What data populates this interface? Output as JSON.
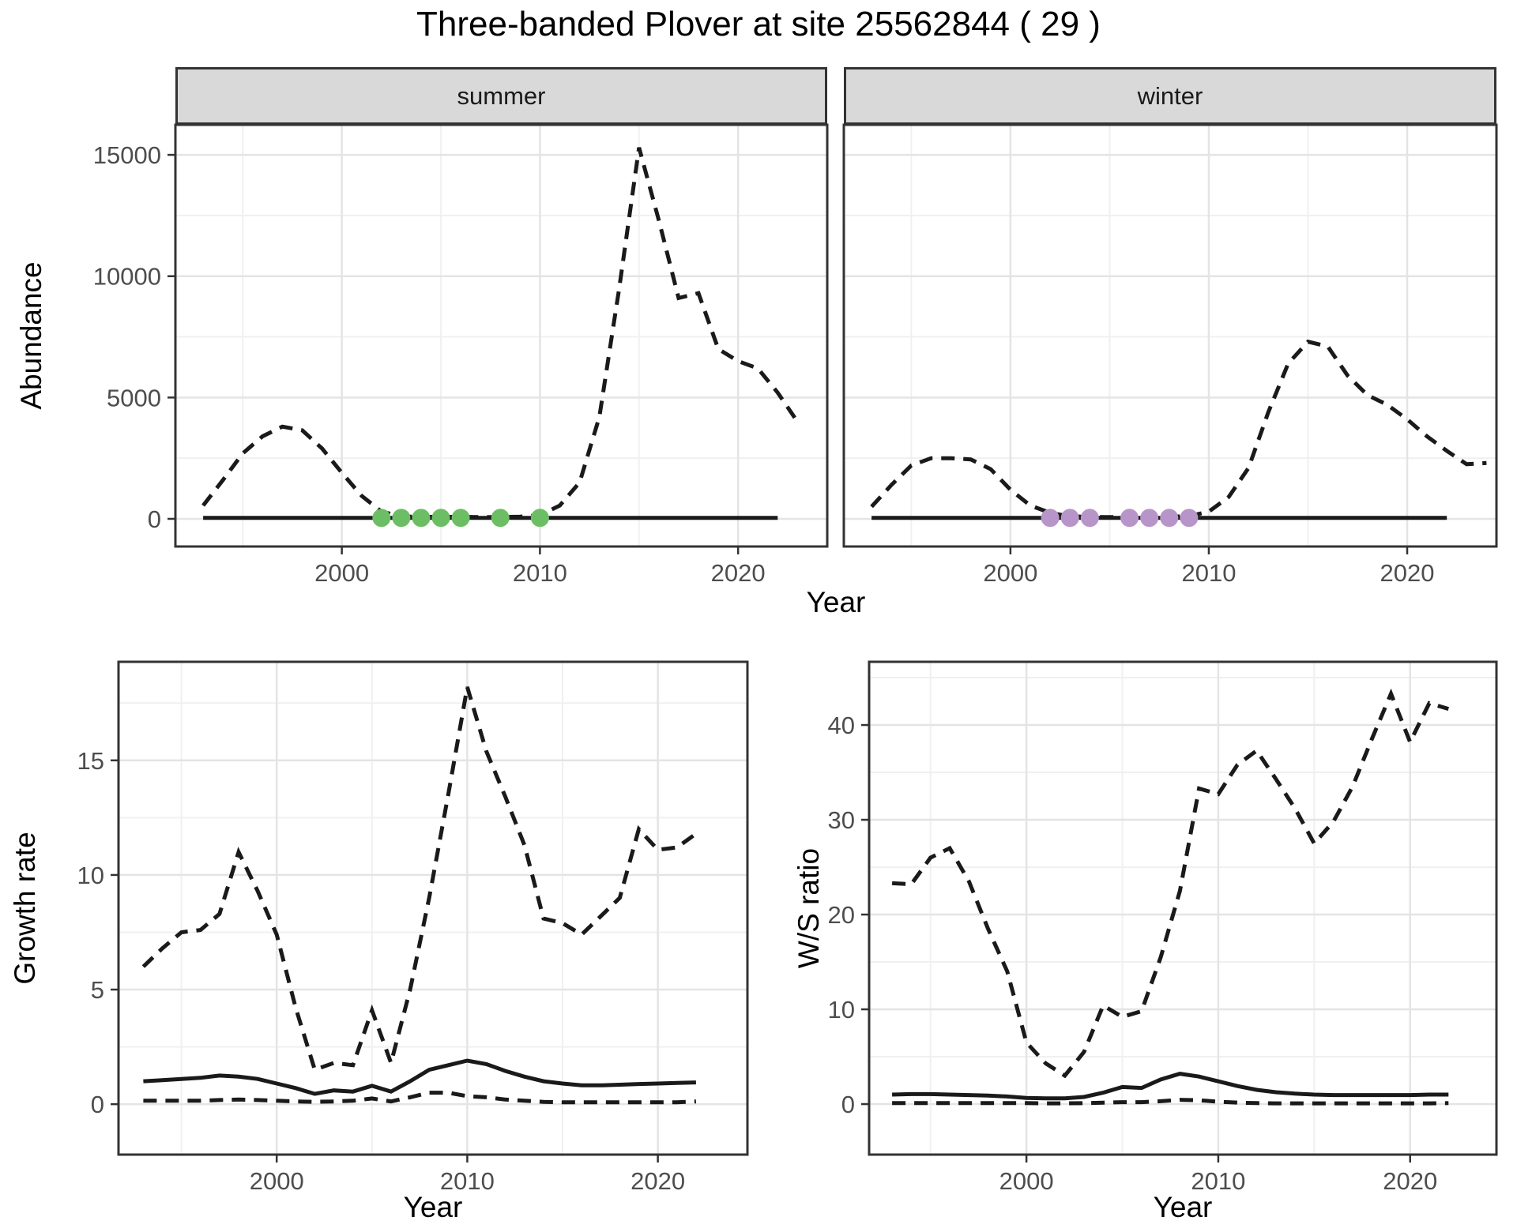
{
  "title": "Three-banded Plover at site 25562844 ( 29 )",
  "axis_titles": {
    "abundance": "Abundance",
    "year": "Year",
    "growth_rate": "Growth rate",
    "ws_ratio": "W/S ratio"
  },
  "colors": {
    "line": "#1a1a1a",
    "points_summer": "#6cbe64",
    "points_winter": "#b795c8",
    "grid_major": "#e4e4e4",
    "grid_minor": "#f0f0f0",
    "strip_bg": "#d9d9d9",
    "panel_border": "#333333",
    "tick_text": "#4d4d4d"
  },
  "chart_data": [
    {
      "id": "summer",
      "type": "line",
      "facet": "summer",
      "xlabel": "Year",
      "ylabel": "Abundance",
      "xlim": [
        1991.6,
        2024.5
      ],
      "ylim": [
        -1140,
        16240
      ],
      "xticks": [
        2000,
        2010,
        2020
      ],
      "xminor": [
        1995,
        2005,
        2015
      ],
      "yticks": [
        0,
        5000,
        10000,
        15000
      ],
      "yminor": [
        2500,
        7500,
        12500
      ],
      "grid": true,
      "show_y_ticks": true,
      "series": [
        {
          "name": "observed-solid",
          "style": "solid",
          "start_year": 1993,
          "values": [
            40,
            40,
            40,
            40,
            40,
            40,
            40,
            40,
            40,
            40,
            40,
            40,
            40,
            40,
            40,
            40,
            40,
            40,
            40,
            40,
            40,
            40,
            40,
            40,
            40,
            40,
            40,
            40,
            40,
            40
          ]
        },
        {
          "name": "model-dashed",
          "style": "dashed",
          "start_year": 1993,
          "values": [
            550,
            1600,
            2700,
            3400,
            3800,
            3650,
            2900,
            1900,
            950,
            300,
            100,
            80,
            80,
            80,
            70,
            70,
            90,
            150,
            550,
            1500,
            4200,
            9500,
            15300,
            12300,
            9100,
            9300,
            7000,
            6500,
            6200,
            5200,
            4000
          ]
        },
        {
          "name": "flagged-years-points",
          "style": "points",
          "color": "#6cbe64",
          "years": [
            2002,
            2003,
            2004,
            2005,
            2006,
            2008,
            2010
          ],
          "values": [
            40,
            40,
            40,
            40,
            40,
            40,
            40
          ]
        }
      ]
    },
    {
      "id": "winter",
      "type": "line",
      "facet": "winter",
      "xlabel": "Year",
      "xlim": [
        1991.6,
        2024.5
      ],
      "ylim": [
        -1140,
        16240
      ],
      "xticks": [
        2000,
        2010,
        2020
      ],
      "xminor": [
        1995,
        2005,
        2015
      ],
      "yticks": [
        0,
        5000,
        10000,
        15000
      ],
      "yminor": [
        2500,
        7500,
        12500
      ],
      "grid": true,
      "show_y_ticks": false,
      "series": [
        {
          "name": "observed-solid",
          "style": "solid",
          "start_year": 1993,
          "values": [
            40,
            40,
            40,
            40,
            40,
            40,
            40,
            40,
            40,
            40,
            40,
            40,
            40,
            40,
            40,
            40,
            40,
            40,
            40,
            40,
            40,
            40,
            40,
            40,
            40,
            40,
            40,
            40,
            40,
            40
          ]
        },
        {
          "name": "model-dashed",
          "style": "dashed",
          "start_year": 1993,
          "values": [
            500,
            1400,
            2200,
            2500,
            2500,
            2450,
            2050,
            1200,
            550,
            250,
            100,
            80,
            70,
            80,
            80,
            90,
            110,
            300,
            900,
            2100,
            4400,
            6400,
            7300,
            7100,
            5900,
            5100,
            4700,
            4100,
            3400,
            2800,
            2250,
            2300
          ]
        },
        {
          "name": "flagged-years-points",
          "style": "points",
          "color": "#b795c8",
          "years": [
            2002,
            2003,
            2004,
            2006,
            2007,
            2008,
            2009
          ],
          "values": [
            40,
            40,
            40,
            40,
            40,
            40,
            40
          ]
        }
      ]
    },
    {
      "id": "growth",
      "type": "line",
      "xlabel": "Year",
      "ylabel": "Growth rate",
      "xlim": [
        1991.7,
        2024.7
      ],
      "ylim": [
        -2.2,
        19.3
      ],
      "xticks": [
        2000,
        2010,
        2020
      ],
      "xminor": [
        1995,
        2005,
        2015
      ],
      "yticks": [
        0,
        5,
        10,
        15
      ],
      "yminor": [
        2.5,
        7.5,
        12.5,
        17.5
      ],
      "grid": true,
      "show_y_ticks": true,
      "series": [
        {
          "name": "upper-dashed",
          "style": "dashed",
          "start_year": 1993,
          "values": [
            6.0,
            6.8,
            7.5,
            7.6,
            8.3,
            11.0,
            9.3,
            7.4,
            4.2,
            1.5,
            1.8,
            1.7,
            4.1,
            1.8,
            5.0,
            9.0,
            13.5,
            18.2,
            15.4,
            13.4,
            11.3,
            8.1,
            7.9,
            7.4,
            8.2,
            9.0,
            12.0,
            11.1,
            11.2,
            11.8
          ]
        },
        {
          "name": "median-solid",
          "style": "solid",
          "start_year": 1993,
          "values": [
            1.0,
            1.05,
            1.1,
            1.15,
            1.25,
            1.2,
            1.1,
            0.9,
            0.7,
            0.45,
            0.6,
            0.55,
            0.8,
            0.55,
            1.0,
            1.5,
            1.7,
            1.9,
            1.75,
            1.45,
            1.2,
            1.0,
            0.9,
            0.82,
            0.82,
            0.85,
            0.88,
            0.9,
            0.93,
            0.95
          ]
        },
        {
          "name": "lower-dashed",
          "style": "dashed",
          "start_year": 1993,
          "values": [
            0.15,
            0.15,
            0.15,
            0.15,
            0.18,
            0.2,
            0.18,
            0.15,
            0.12,
            0.1,
            0.12,
            0.15,
            0.25,
            0.12,
            0.3,
            0.5,
            0.5,
            0.35,
            0.3,
            0.2,
            0.15,
            0.1,
            0.08,
            0.08,
            0.08,
            0.08,
            0.08,
            0.08,
            0.08,
            0.12
          ]
        }
      ]
    },
    {
      "id": "ws",
      "type": "line",
      "xlabel": "Year",
      "ylabel": "W/S ratio",
      "xlim": [
        1991.8,
        2024.5
      ],
      "ylim": [
        -5.33,
        46.67
      ],
      "xticks": [
        2000,
        2010,
        2020
      ],
      "xminor": [
        1995,
        2005,
        2015
      ],
      "yticks": [
        0,
        10,
        20,
        30,
        40
      ],
      "yminor": [
        5,
        15,
        25,
        35,
        45
      ],
      "grid": true,
      "show_y_ticks": true,
      "series": [
        {
          "name": "upper-dashed",
          "style": "dashed",
          "start_year": 1993,
          "values": [
            23.3,
            23.2,
            26.0,
            27.0,
            23.5,
            18.5,
            14.0,
            6.5,
            4.3,
            3.0,
            5.5,
            10.4,
            9.2,
            9.8,
            15.5,
            22.5,
            33.3,
            32.7,
            35.8,
            37.3,
            34.3,
            31.2,
            27.5,
            29.8,
            33.5,
            38.5,
            43.3,
            38.2,
            42.3,
            41.7
          ]
        },
        {
          "name": "median-solid",
          "style": "solid",
          "start_year": 1993,
          "values": [
            1.0,
            1.05,
            1.05,
            1.0,
            0.95,
            0.9,
            0.8,
            0.65,
            0.6,
            0.6,
            0.75,
            1.2,
            1.8,
            1.7,
            2.6,
            3.2,
            2.9,
            2.4,
            1.9,
            1.5,
            1.25,
            1.1,
            1.0,
            0.95,
            0.95,
            0.95,
            0.95,
            0.95,
            1.0,
            1.0
          ]
        },
        {
          "name": "lower-dashed",
          "style": "dashed",
          "start_year": 1993,
          "values": [
            0.1,
            0.1,
            0.1,
            0.1,
            0.1,
            0.1,
            0.1,
            0.1,
            0.08,
            0.08,
            0.1,
            0.15,
            0.2,
            0.2,
            0.3,
            0.45,
            0.4,
            0.25,
            0.15,
            0.1,
            0.08,
            0.08,
            0.08,
            0.08,
            0.08,
            0.08,
            0.08,
            0.08,
            0.08,
            0.1
          ]
        }
      ]
    }
  ]
}
